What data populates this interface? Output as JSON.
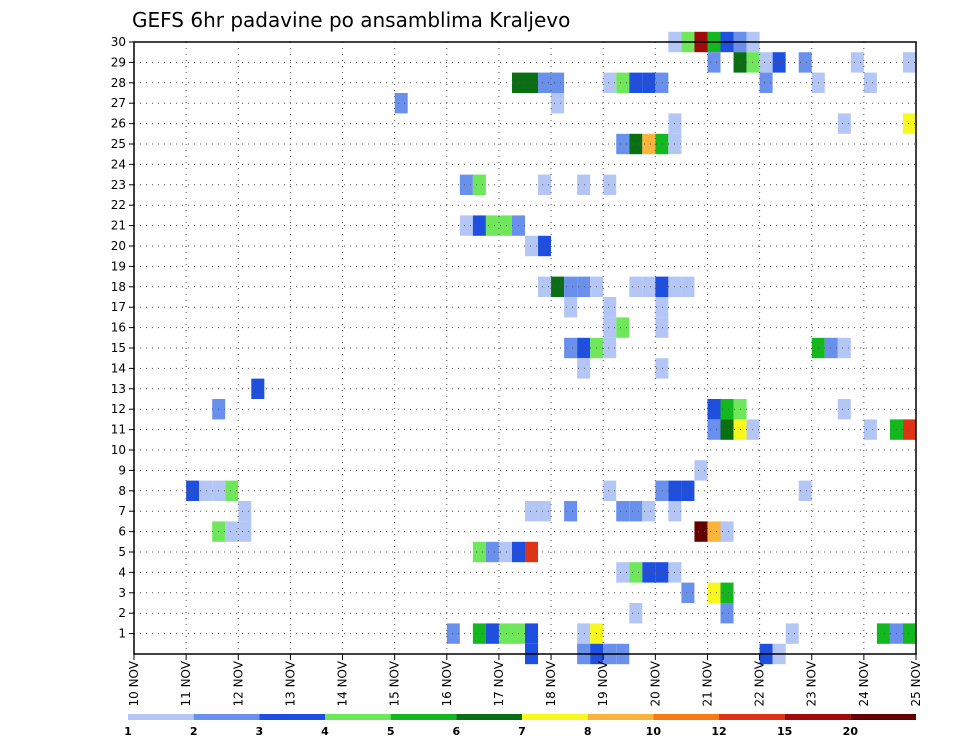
{
  "chart_data": {
    "type": "heatmap",
    "title": "GEFS 6hr padavine po ansamblima Kraljevo",
    "xlabel": "",
    "ylabel": "",
    "x_ticks": [
      "10 NOV",
      "11 NOV",
      "12 NOV",
      "13 NOV",
      "14 NOV",
      "15 NOV",
      "16 NOV",
      "17 NOV",
      "18 NOV",
      "19 NOV",
      "20 NOV",
      "21 NOV",
      "22 NOV",
      "23 NOV",
      "24 NOV",
      "25 NOV"
    ],
    "y_ticks": [
      "1",
      "2",
      "3",
      "4",
      "5",
      "6",
      "7",
      "8",
      "9",
      "10",
      "11",
      "12",
      "13",
      "14",
      "15",
      "16",
      "17",
      "18",
      "19",
      "20",
      "21",
      "22",
      "23",
      "24",
      "25",
      "26",
      "27",
      "28",
      "29",
      "30"
    ],
    "x_range": [
      "10 NOV 00",
      "25 NOV 00"
    ],
    "y_range": [
      0,
      30
    ],
    "time_step_hours": 6,
    "grid": true,
    "colorbar": {
      "position": "bottom",
      "tick_labels": [
        "1",
        "2",
        "3",
        "4",
        "5",
        "6",
        "7",
        "8",
        "10",
        "12",
        "15",
        "20"
      ],
      "colors": [
        "#b4c6f5",
        "#6a90ee",
        "#1e4fe0",
        "#6ee85a",
        "#12b81e",
        "#0a6e12",
        "#f8f81e",
        "#fab43c",
        "#f87a14",
        "#e03214",
        "#a00a0a",
        "#640000"
      ]
    },
    "cells": [
      {
        "x": "11 NOV 00",
        "y": 8,
        "level": 3
      },
      {
        "x": "11 NOV 06",
        "y": 8,
        "level": 1
      },
      {
        "x": "11 NOV 12",
        "y": 8,
        "level": 1
      },
      {
        "x": "11 NOV 18",
        "y": 8,
        "level": 4
      },
      {
        "x": "11 NOV 12",
        "y": 12,
        "level": 2
      },
      {
        "x": "11 NOV 12",
        "y": 6,
        "level": 4
      },
      {
        "x": "11 NOV 18",
        "y": 6,
        "level": 1
      },
      {
        "x": "12 NOV 00",
        "y": 6,
        "level": 1
      },
      {
        "x": "12 NOV 00",
        "y": 7,
        "level": 1
      },
      {
        "x": "12 NOV 06",
        "y": 13,
        "level": 3
      },
      {
        "x": "15 NOV 00",
        "y": 27,
        "level": 2
      },
      {
        "x": "16 NOV 00",
        "y": 1,
        "level": 2
      },
      {
        "x": "16 NOV 06",
        "y": 21,
        "level": 1
      },
      {
        "x": "16 NOV 06",
        "y": 23,
        "level": 2
      },
      {
        "x": "16 NOV 12",
        "y": 23,
        "level": 4
      },
      {
        "x": "16 NOV 12",
        "y": 21,
        "level": 3
      },
      {
        "x": "16 NOV 12",
        "y": 5,
        "level": 4
      },
      {
        "x": "16 NOV 12",
        "y": 1,
        "level": 5
      },
      {
        "x": "16 NOV 18",
        "y": 21,
        "level": 4
      },
      {
        "x": "16 NOV 18",
        "y": 5,
        "level": 2
      },
      {
        "x": "16 NOV 18",
        "y": 1,
        "level": 3
      },
      {
        "x": "17 NOV 00",
        "y": 21,
        "level": 4
      },
      {
        "x": "17 NOV 00",
        "y": 5,
        "level": 1
      },
      {
        "x": "17 NOV 00",
        "y": 1,
        "level": 4
      },
      {
        "x": "17 NOV 06",
        "y": 28,
        "level": 6
      },
      {
        "x": "17 NOV 06",
        "y": 21,
        "level": 2
      },
      {
        "x": "17 NOV 06",
        "y": 5,
        "level": 3
      },
      {
        "x": "17 NOV 06",
        "y": 1,
        "level": 4
      },
      {
        "x": "17 NOV 12",
        "y": 28,
        "level": 6
      },
      {
        "x": "17 NOV 12",
        "y": 20,
        "level": 1
      },
      {
        "x": "17 NOV 12",
        "y": 7,
        "level": 1
      },
      {
        "x": "17 NOV 12",
        "y": 5,
        "level": 10
      },
      {
        "x": "17 NOV 12",
        "y": 1,
        "level": 3
      },
      {
        "x": "17 NOV 12",
        "y": 0,
        "level": 3
      },
      {
        "x": "17 NOV 18",
        "y": 28,
        "level": 2
      },
      {
        "x": "17 NOV 18",
        "y": 23,
        "level": 1
      },
      {
        "x": "17 NOV 18",
        "y": 20,
        "level": 3
      },
      {
        "x": "17 NOV 18",
        "y": 18,
        "level": 1
      },
      {
        "x": "17 NOV 18",
        "y": 7,
        "level": 1
      },
      {
        "x": "18 NOV 00",
        "y": 28,
        "level": 2
      },
      {
        "x": "18 NOV 00",
        "y": 27,
        "level": 1
      },
      {
        "x": "18 NOV 00",
        "y": 18,
        "level": 6
      },
      {
        "x": "18 NOV 06",
        "y": 18,
        "level": 2
      },
      {
        "x": "18 NOV 06",
        "y": 17,
        "level": 1
      },
      {
        "x": "18 NOV 06",
        "y": 15,
        "level": 2
      },
      {
        "x": "18 NOV 06",
        "y": 7,
        "level": 2
      },
      {
        "x": "18 NOV 12",
        "y": 23,
        "level": 1
      },
      {
        "x": "18 NOV 12",
        "y": 18,
        "level": 2
      },
      {
        "x": "18 NOV 12",
        "y": 15,
        "level": 3
      },
      {
        "x": "18 NOV 12",
        "y": 14,
        "level": 1
      },
      {
        "x": "18 NOV 12",
        "y": 1,
        "level": 1
      },
      {
        "x": "18 NOV 12",
        "y": 0,
        "level": 2
      },
      {
        "x": "18 NOV 18",
        "y": 18,
        "level": 1
      },
      {
        "x": "18 NOV 18",
        "y": 15,
        "level": 4
      },
      {
        "x": "18 NOV 18",
        "y": 1,
        "level": 7
      },
      {
        "x": "18 NOV 18",
        "y": 0,
        "level": 3
      },
      {
        "x": "19 NOV 00",
        "y": 28,
        "level": 1
      },
      {
        "x": "19 NOV 00",
        "y": 23,
        "level": 1
      },
      {
        "x": "19 NOV 00",
        "y": 17,
        "level": 1
      },
      {
        "x": "19 NOV 00",
        "y": 16,
        "level": 1
      },
      {
        "x": "19 NOV 00",
        "y": 15,
        "level": 1
      },
      {
        "x": "19 NOV 00",
        "y": 8,
        "level": 1
      },
      {
        "x": "19 NOV 00",
        "y": 0,
        "level": 2
      },
      {
        "x": "19 NOV 06",
        "y": 28,
        "level": 4
      },
      {
        "x": "19 NOV 06",
        "y": 25,
        "level": 2
      },
      {
        "x": "19 NOV 06",
        "y": 16,
        "level": 4
      },
      {
        "x": "19 NOV 06",
        "y": 7,
        "level": 2
      },
      {
        "x": "19 NOV 06",
        "y": 4,
        "level": 1
      },
      {
        "x": "19 NOV 06",
        "y": 0,
        "level": 2
      },
      {
        "x": "19 NOV 12",
        "y": 28,
        "level": 3
      },
      {
        "x": "19 NOV 12",
        "y": 25,
        "level": 6
      },
      {
        "x": "19 NOV 12",
        "y": 18,
        "level": 1
      },
      {
        "x": "19 NOV 12",
        "y": 7,
        "level": 2
      },
      {
        "x": "19 NOV 12",
        "y": 4,
        "level": 4
      },
      {
        "x": "19 NOV 12",
        "y": 2,
        "level": 1
      },
      {
        "x": "19 NOV 18",
        "y": 28,
        "level": 3
      },
      {
        "x": "19 NOV 18",
        "y": 25,
        "level": 8
      },
      {
        "x": "19 NOV 18",
        "y": 18,
        "level": 1
      },
      {
        "x": "19 NOV 18",
        "y": 7,
        "level": 1
      },
      {
        "x": "19 NOV 18",
        "y": 4,
        "level": 3
      },
      {
        "x": "20 NOV 00",
        "y": 28,
        "level": 2
      },
      {
        "x": "20 NOV 00",
        "y": 25,
        "level": 5
      },
      {
        "x": "20 NOV 00",
        "y": 18,
        "level": 3
      },
      {
        "x": "20 NOV 00",
        "y": 17,
        "level": 1
      },
      {
        "x": "20 NOV 00",
        "y": 16,
        "level": 1
      },
      {
        "x": "20 NOV 00",
        "y": 14,
        "level": 1
      },
      {
        "x": "20 NOV 00",
        "y": 8,
        "level": 2
      },
      {
        "x": "20 NOV 00",
        "y": 4,
        "level": 3
      },
      {
        "x": "20 NOV 06",
        "y": 30,
        "level": 1
      },
      {
        "x": "20 NOV 06",
        "y": 26,
        "level": 1
      },
      {
        "x": "20 NOV 06",
        "y": 25,
        "level": 1
      },
      {
        "x": "20 NOV 06",
        "y": 18,
        "level": 1
      },
      {
        "x": "20 NOV 06",
        "y": 8,
        "level": 3
      },
      {
        "x": "20 NOV 06",
        "y": 7,
        "level": 1
      },
      {
        "x": "20 NOV 06",
        "y": 4,
        "level": 1
      },
      {
        "x": "20 NOV 12",
        "y": 30,
        "level": 4
      },
      {
        "x": "20 NOV 12",
        "y": 18,
        "level": 1
      },
      {
        "x": "20 NOV 12",
        "y": 8,
        "level": 3
      },
      {
        "x": "20 NOV 12",
        "y": 3,
        "level": 2
      },
      {
        "x": "20 NOV 18",
        "y": 30,
        "level": 11
      },
      {
        "x": "20 NOV 18",
        "y": 9,
        "level": 1
      },
      {
        "x": "20 NOV 18",
        "y": 6,
        "level": 12
      },
      {
        "x": "21 NOV 00",
        "y": 30,
        "level": 5
      },
      {
        "x": "21 NOV 00",
        "y": 29,
        "level": 2
      },
      {
        "x": "21 NOV 00",
        "y": 12,
        "level": 3
      },
      {
        "x": "21 NOV 00",
        "y": 11,
        "level": 2
      },
      {
        "x": "21 NOV 00",
        "y": 6,
        "level": 8
      },
      {
        "x": "21 NOV 00",
        "y": 3,
        "level": 7
      },
      {
        "x": "21 NOV 06",
        "y": 30,
        "level": 3
      },
      {
        "x": "21 NOV 06",
        "y": 12,
        "level": 5
      },
      {
        "x": "21 NOV 06",
        "y": 11,
        "level": 6
      },
      {
        "x": "21 NOV 06",
        "y": 6,
        "level": 1
      },
      {
        "x": "21 NOV 06",
        "y": 3,
        "level": 5
      },
      {
        "x": "21 NOV 06",
        "y": 2,
        "level": 2
      },
      {
        "x": "21 NOV 12",
        "y": 30,
        "level": 2
      },
      {
        "x": "21 NOV 12",
        "y": 29,
        "level": 6
      },
      {
        "x": "21 NOV 12",
        "y": 12,
        "level": 4
      },
      {
        "x": "21 NOV 12",
        "y": 11,
        "level": 7
      },
      {
        "x": "21 NOV 18",
        "y": 30,
        "level": 1
      },
      {
        "x": "21 NOV 18",
        "y": 29,
        "level": 4
      },
      {
        "x": "21 NOV 18",
        "y": 11,
        "level": 1
      },
      {
        "x": "22 NOV 00",
        "y": 29,
        "level": 1
      },
      {
        "x": "22 NOV 00",
        "y": 28,
        "level": 2
      },
      {
        "x": "22 NOV 00",
        "y": 0,
        "level": 3
      },
      {
        "x": "22 NOV 06",
        "y": 29,
        "level": 3
      },
      {
        "x": "22 NOV 06",
        "y": 0,
        "level": 1
      },
      {
        "x": "22 NOV 12",
        "y": 1,
        "level": 1
      },
      {
        "x": "22 NOV 18",
        "y": 29,
        "level": 2
      },
      {
        "x": "22 NOV 18",
        "y": 8,
        "level": 1
      },
      {
        "x": "23 NOV 00",
        "y": 28,
        "level": 1
      },
      {
        "x": "23 NOV 00",
        "y": 15,
        "level": 5
      },
      {
        "x": "23 NOV 06",
        "y": 15,
        "level": 2
      },
      {
        "x": "23 NOV 12",
        "y": 26,
        "level": 1
      },
      {
        "x": "23 NOV 12",
        "y": 15,
        "level": 1
      },
      {
        "x": "23 NOV 12",
        "y": 12,
        "level": 1
      },
      {
        "x": "23 NOV 18",
        "y": 29,
        "level": 1
      },
      {
        "x": "24 NOV 00",
        "y": 28,
        "level": 1
      },
      {
        "x": "24 NOV 00",
        "y": 11,
        "level": 1
      },
      {
        "x": "24 NOV 06",
        "y": 1,
        "level": 5
      },
      {
        "x": "24 NOV 12",
        "y": 11,
        "level": 5
      },
      {
        "x": "24 NOV 12",
        "y": 1,
        "level": 2
      },
      {
        "x": "24 NOV 18",
        "y": 29,
        "level": 1
      },
      {
        "x": "24 NOV 18",
        "y": 26,
        "level": 7
      },
      {
        "x": "24 NOV 18",
        "y": 11,
        "level": 10
      },
      {
        "x": "24 NOV 18",
        "y": 1,
        "level": 5
      }
    ]
  }
}
